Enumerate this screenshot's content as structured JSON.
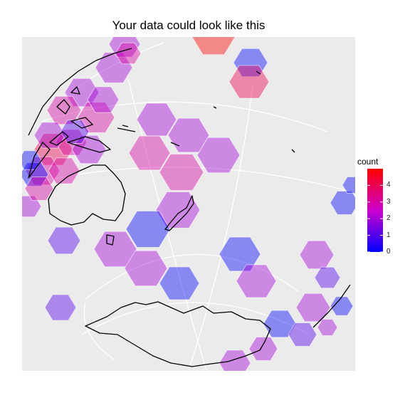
{
  "chart_data": {
    "type": "heatmap",
    "title": "Your data could look like this",
    "xlabel": "",
    "ylabel": "",
    "grid": true,
    "legend": {
      "title": "count",
      "position": "right",
      "range": [
        0,
        5
      ],
      "ticks": [
        0,
        1,
        2,
        3,
        4
      ],
      "colors": {
        "low": "#0000ff",
        "mid": "#cc00cc",
        "high": "#ff0000"
      }
    },
    "background": "#ebebeb",
    "cells": [
      {
        "id": "c1",
        "count": 5
      },
      {
        "id": "c2",
        "count": 0
      },
      {
        "id": "c3",
        "count": 4
      },
      {
        "id": "c4",
        "count": 2
      },
      {
        "id": "c5",
        "count": 2
      },
      {
        "id": "c6",
        "count": 3
      },
      {
        "id": "c7",
        "count": 3
      },
      {
        "id": "c8",
        "count": 2
      },
      {
        "id": "c9",
        "count": 2
      },
      {
        "id": "c10",
        "count": 3
      },
      {
        "id": "c11",
        "count": 4
      },
      {
        "id": "c12",
        "count": 3
      },
      {
        "id": "c13",
        "count": 3
      },
      {
        "id": "c14",
        "count": 3
      },
      {
        "id": "c15",
        "count": 2
      },
      {
        "id": "c16",
        "count": 2
      },
      {
        "id": "c17",
        "count": 3
      },
      {
        "id": "c18",
        "count": 0
      },
      {
        "id": "c19",
        "count": 2
      },
      {
        "id": "c20",
        "count": 2
      },
      {
        "id": "c21",
        "count": 1
      },
      {
        "id": "c22",
        "count": 3
      },
      {
        "id": "c23",
        "count": 0
      },
      {
        "id": "c24",
        "count": 2
      },
      {
        "id": "c25",
        "count": 2
      },
      {
        "id": "c26",
        "count": 0
      },
      {
        "id": "c27",
        "count": 0
      },
      {
        "id": "c28",
        "count": 2
      },
      {
        "id": "c29",
        "count": 2
      },
      {
        "id": "c30",
        "count": 1
      },
      {
        "id": "c31",
        "count": 0
      },
      {
        "id": "c32",
        "count": 2
      },
      {
        "id": "c33",
        "count": 1
      },
      {
        "id": "c34",
        "count": 1
      },
      {
        "id": "c35",
        "count": 0
      },
      {
        "id": "c36",
        "count": 2
      },
      {
        "id": "c37",
        "count": 0
      },
      {
        "id": "c38",
        "count": 2
      },
      {
        "id": "c39",
        "count": 0
      },
      {
        "id": "c40",
        "count": 2
      },
      {
        "id": "c41",
        "count": 2
      },
      {
        "id": "c42",
        "count": 2
      },
      {
        "id": "c43",
        "count": 0
      },
      {
        "id": "c44",
        "count": 1
      },
      {
        "id": "c45",
        "count": 2
      },
      {
        "id": "c46",
        "count": 3
      }
    ]
  }
}
